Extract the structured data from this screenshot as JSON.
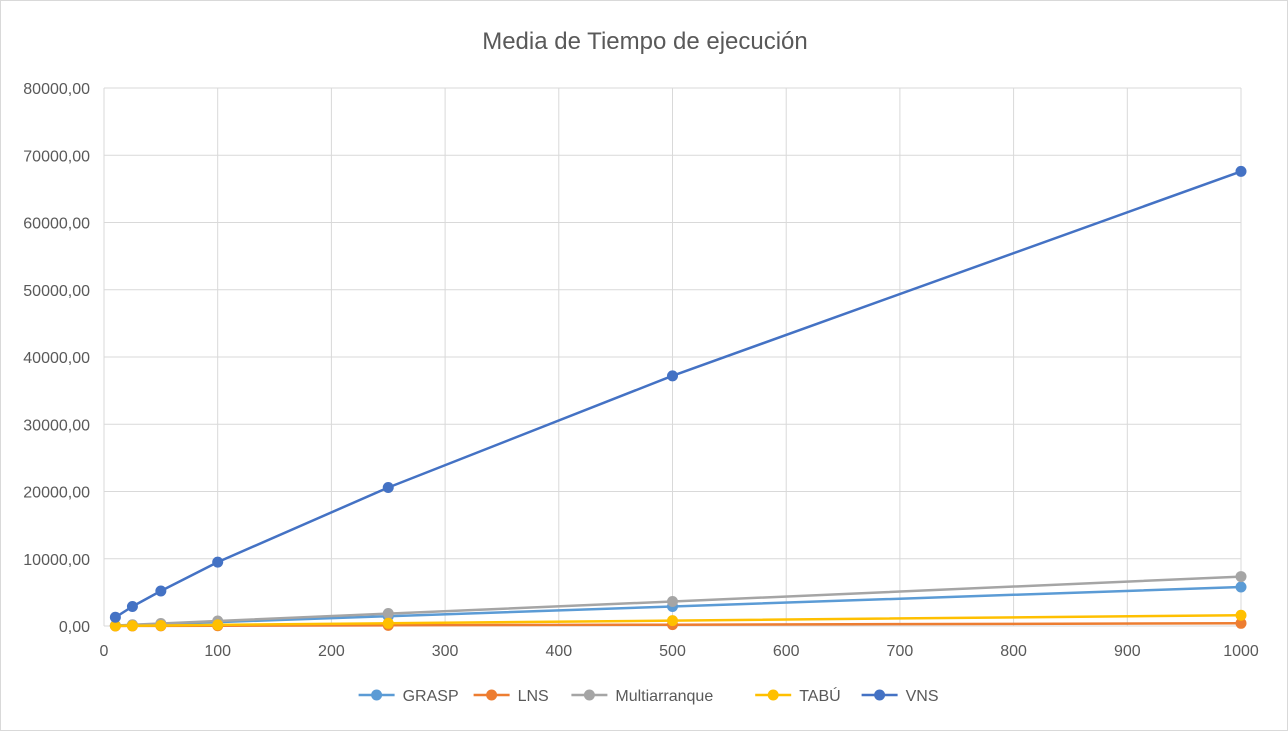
{
  "chart_data": {
    "type": "scatter",
    "title": "Media de Tiempo de ejecución",
    "xlabel": "",
    "ylabel": "",
    "xlim": [
      0,
      1000
    ],
    "ylim": [
      0,
      80000
    ],
    "x_ticks": [
      "0",
      "100",
      "200",
      "300",
      "400",
      "500",
      "600",
      "700",
      "800",
      "900",
      "1000"
    ],
    "y_ticks": [
      "0,00",
      "10000,00",
      "20000,00",
      "30000,00",
      "40000,00",
      "50000,00",
      "60000,00",
      "70000,00",
      "80000,00"
    ],
    "grid": true,
    "legend_position": "bottom",
    "x": [
      10,
      25,
      50,
      100,
      250,
      500,
      1000
    ],
    "series": [
      {
        "name": "GRASP",
        "color": "#5B9BD5",
        "values": [
          60,
          150,
          300,
          580,
          1450,
          2900,
          5800
        ]
      },
      {
        "name": "LNS",
        "color": "#ED7D31",
        "values": [
          5,
          10,
          20,
          40,
          100,
          200,
          400
        ]
      },
      {
        "name": "Multiarranque",
        "color": "#A5A5A5",
        "values": [
          75,
          185,
          370,
          740,
          1850,
          3650,
          7350
        ]
      },
      {
        "name": "TABÚ",
        "color": "#FFC000",
        "values": [
          15,
          40,
          80,
          160,
          400,
          800,
          1600
        ]
      },
      {
        "name": "VNS",
        "color": "#4472C4",
        "values": [
          1300,
          2900,
          5200,
          9500,
          20600,
          37200,
          67600
        ]
      }
    ]
  }
}
